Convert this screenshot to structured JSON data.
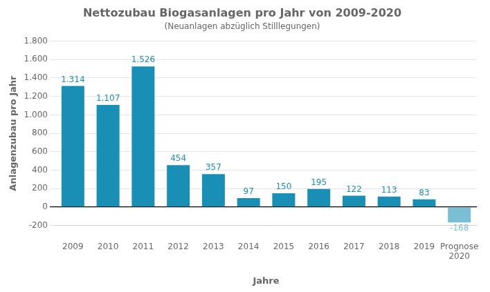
{
  "chart_data": {
    "type": "bar",
    "title": "Nettozubau Biogasanlagen pro Jahr von 2009-2020",
    "subtitle": "(Neuanlagen abzüglich Stilllegungen)",
    "x_label": "Jahre",
    "y_label": "Anlagenzubau pro Jahr",
    "categories": [
      "2009",
      "2010",
      "2011",
      "2012",
      "2013",
      "2014",
      "2015",
      "2016",
      "2017",
      "2018",
      "2019",
      "Prognose\n2020"
    ],
    "values": [
      1314,
      1107,
      1526,
      454,
      357,
      97,
      150,
      195,
      122,
      113,
      83,
      -168
    ],
    "value_labels": [
      "1.314",
      "1.107",
      "1.526",
      "454",
      "357",
      "97",
      "150",
      "195",
      "122",
      "113",
      "83",
      "-168"
    ],
    "colors": [
      "#1a8fb5",
      "#1a8fb5",
      "#1a8fb5",
      "#1a8fb5",
      "#1a8fb5",
      "#1a8fb5",
      "#1a8fb5",
      "#1a8fb5",
      "#1a8fb5",
      "#1a8fb5",
      "#1a8fb5",
      "#7bbfd4"
    ],
    "ylim": [
      -200,
      1800
    ],
    "yticks": [
      -200,
      0,
      200,
      400,
      600,
      800,
      {
        "value": 1000,
        "label": "1.000"
      },
      {
        "value": 1200,
        "label": "1.200"
      },
      {
        "value": 1400,
        "label": "1.400"
      },
      {
        "value": 1600,
        "label": "1.600"
      },
      {
        "value": 1800,
        "label": "1.800"
      }
    ],
    "grid": true,
    "data_labels": true
  }
}
